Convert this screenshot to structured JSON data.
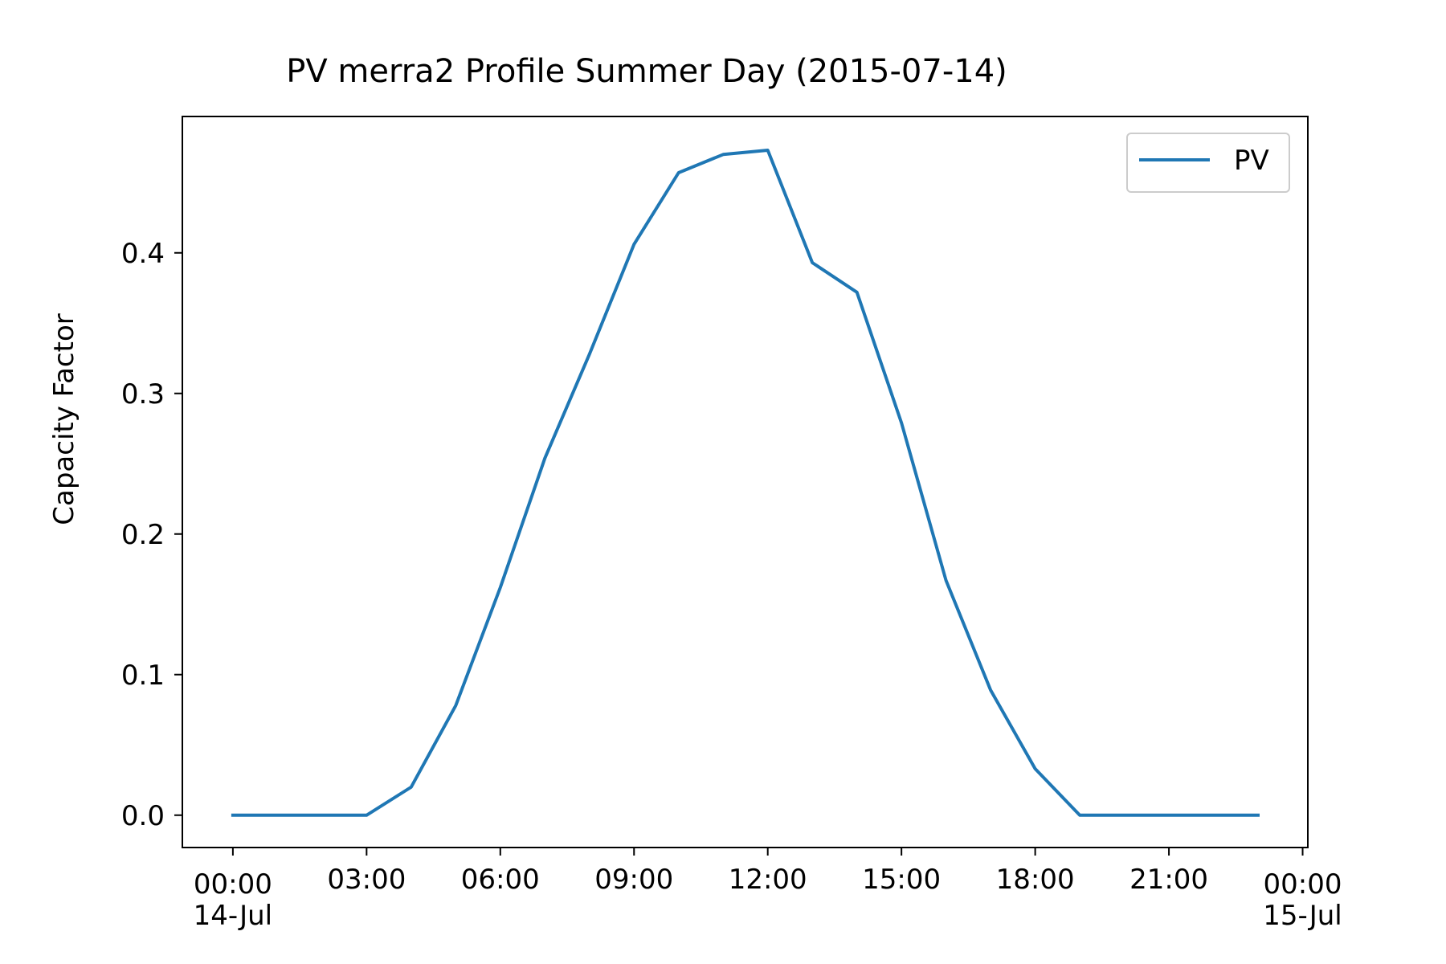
{
  "chart_data": {
    "type": "line",
    "title": "PV merra2 Profile Summer Day (2015-07-14)",
    "xlabel": "",
    "ylabel": "Capacity Factor",
    "x": [
      "2015-07-14 00:00",
      "2015-07-14 01:00",
      "2015-07-14 02:00",
      "2015-07-14 03:00",
      "2015-07-14 04:00",
      "2015-07-14 05:00",
      "2015-07-14 06:00",
      "2015-07-14 07:00",
      "2015-07-14 08:00",
      "2015-07-14 09:00",
      "2015-07-14 10:00",
      "2015-07-14 11:00",
      "2015-07-14 12:00",
      "2015-07-14 13:00",
      "2015-07-14 14:00",
      "2015-07-14 15:00",
      "2015-07-14 16:00",
      "2015-07-14 17:00",
      "2015-07-14 18:00",
      "2015-07-14 19:00",
      "2015-07-14 20:00",
      "2015-07-14 21:00",
      "2015-07-14 22:00",
      "2015-07-14 23:00"
    ],
    "series": [
      {
        "name": "PV",
        "color": "#1f77b4",
        "values": [
          0.0,
          0.0,
          0.0,
          0.0,
          0.02,
          0.078,
          0.162,
          0.254,
          0.328,
          0.406,
          0.457,
          0.47,
          0.473,
          0.393,
          0.372,
          0.279,
          0.167,
          0.089,
          0.033,
          0.0,
          0.0,
          0.0,
          0.0,
          0.0
        ]
      }
    ],
    "xlim": [
      "2015-07-13 22:52",
      "2015-07-15 00:07"
    ],
    "ylim": [
      -0.023,
      0.497
    ],
    "yticks": [
      0.0,
      0.1,
      0.2,
      0.3,
      0.4
    ],
    "ytick_labels": [
      "0.0",
      "0.1",
      "0.2",
      "0.3",
      "0.4"
    ],
    "xticks": [
      {
        "time": "2015-07-14 00:00",
        "label": "00:00",
        "sublabel": "14-Jul"
      },
      {
        "time": "2015-07-14 03:00",
        "label": "03:00",
        "sublabel": ""
      },
      {
        "time": "2015-07-14 06:00",
        "label": "06:00",
        "sublabel": ""
      },
      {
        "time": "2015-07-14 09:00",
        "label": "09:00",
        "sublabel": ""
      },
      {
        "time": "2015-07-14 12:00",
        "label": "12:00",
        "sublabel": ""
      },
      {
        "time": "2015-07-14 15:00",
        "label": "15:00",
        "sublabel": ""
      },
      {
        "time": "2015-07-14 18:00",
        "label": "18:00",
        "sublabel": ""
      },
      {
        "time": "2015-07-14 21:00",
        "label": "21:00",
        "sublabel": ""
      },
      {
        "time": "2015-07-15 00:00",
        "label": "00:00",
        "sublabel": "15-Jul"
      }
    ],
    "legend": {
      "position": "top-right",
      "entries": [
        "PV"
      ]
    },
    "grid": false
  }
}
